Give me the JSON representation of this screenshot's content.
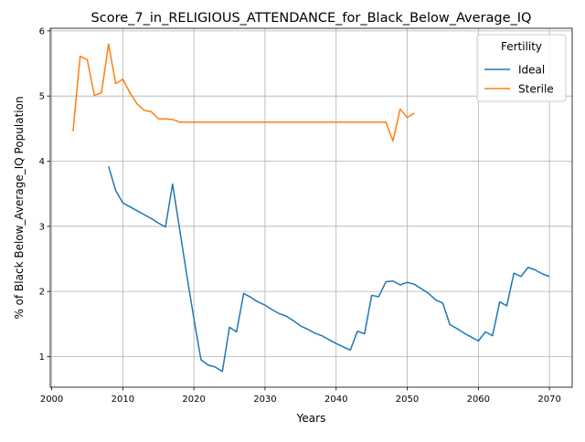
{
  "chart_data": {
    "type": "line",
    "title": "Score_7_in_RELIGIOUS_ATTENDANCE_for_Black_Below_Average_IQ",
    "xlabel": "Years",
    "ylabel": "% of Black Below_Average_IQ Population",
    "xlim": [
      1999.8,
      2073.2
    ],
    "ylim": [
      0.53,
      6.04
    ],
    "x_ticks": [
      2000,
      2010,
      2020,
      2030,
      2040,
      2050,
      2060,
      2070
    ],
    "y_ticks": [
      1,
      2,
      3,
      4,
      5,
      6
    ],
    "grid": true,
    "legend": {
      "title": "Fertility",
      "placement": "top-right"
    },
    "series": [
      {
        "name": "Ideal",
        "color": "#1f77b4",
        "x": [
          2008,
          2009,
          2010,
          2011,
          2012,
          2013,
          2014,
          2015,
          2016,
          2017,
          2018,
          2019,
          2020,
          2021,
          2022,
          2023,
          2024,
          2025,
          2026,
          2027,
          2028,
          2029,
          2030,
          2031,
          2032,
          2033,
          2034,
          2035,
          2036,
          2037,
          2038,
          2039,
          2040,
          2041,
          2042,
          2043,
          2044,
          2045,
          2046,
          2047,
          2048,
          2049,
          2050,
          2051,
          2052,
          2053,
          2054,
          2055,
          2056,
          2057,
          2058,
          2059,
          2060,
          2061,
          2062,
          2063,
          2064,
          2065,
          2066,
          2067,
          2068,
          2069,
          2070
        ],
        "values": [
          3.92,
          3.55,
          3.36,
          3.3,
          3.24,
          3.18,
          3.12,
          3.05,
          2.99,
          3.65,
          2.95,
          2.25,
          1.58,
          0.95,
          0.87,
          0.84,
          0.77,
          1.45,
          1.38,
          1.97,
          1.91,
          1.84,
          1.79,
          1.72,
          1.66,
          1.62,
          1.55,
          1.47,
          1.42,
          1.36,
          1.32,
          1.26,
          1.2,
          1.15,
          1.1,
          1.39,
          1.35,
          1.94,
          1.92,
          2.15,
          2.16,
          2.1,
          2.14,
          2.11,
          2.04,
          1.97,
          1.87,
          1.82,
          1.49,
          1.43,
          1.36,
          1.3,
          1.24,
          1.38,
          1.32,
          1.84,
          1.78,
          2.28,
          2.23,
          2.37,
          2.33,
          2.27,
          2.23
        ]
      },
      {
        "name": "Sterile",
        "color": "#ff7f0e",
        "x": [
          2003,
          2004,
          2005,
          2006,
          2007,
          2008,
          2009,
          2010,
          2011,
          2012,
          2013,
          2014,
          2015,
          2016,
          2017,
          2018,
          2019,
          2020,
          2021,
          2022,
          2023,
          2024,
          2025,
          2026,
          2027,
          2028,
          2029,
          2030,
          2031,
          2032,
          2033,
          2034,
          2035,
          2036,
          2037,
          2038,
          2039,
          2040,
          2041,
          2042,
          2043,
          2044,
          2045,
          2046,
          2047,
          2048,
          2049,
          2050,
          2051
        ],
        "values": [
          4.46,
          5.61,
          5.56,
          5.01,
          5.05,
          5.8,
          5.19,
          5.26,
          5.05,
          4.88,
          4.78,
          4.76,
          4.65,
          4.65,
          4.64,
          4.6,
          4.6,
          4.6,
          4.6,
          4.6,
          4.6,
          4.6,
          4.6,
          4.6,
          4.6,
          4.6,
          4.6,
          4.6,
          4.6,
          4.6,
          4.6,
          4.6,
          4.6,
          4.6,
          4.6,
          4.6,
          4.6,
          4.6,
          4.6,
          4.6,
          4.6,
          4.6,
          4.6,
          4.6,
          4.6,
          4.31,
          4.8,
          4.67,
          4.74
        ]
      }
    ]
  }
}
